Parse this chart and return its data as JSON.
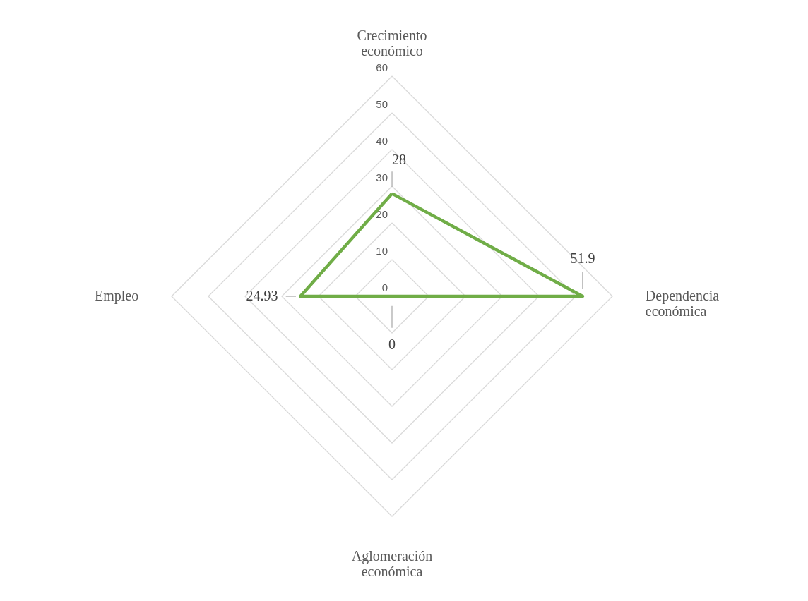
{
  "chart_data": {
    "type": "radar",
    "categories": [
      "Crecimiento económico",
      "Dependencia económica",
      "Aglomeración económica",
      "Empleo"
    ],
    "series": [
      {
        "color": "#70ad47",
        "values": [
          28,
          51.9,
          0,
          24.93
        ]
      }
    ],
    "ylim": [
      0,
      60
    ],
    "yticks": [
      0,
      10,
      20,
      30,
      40,
      50,
      60
    ],
    "grid": true,
    "data_labels": true
  }
}
